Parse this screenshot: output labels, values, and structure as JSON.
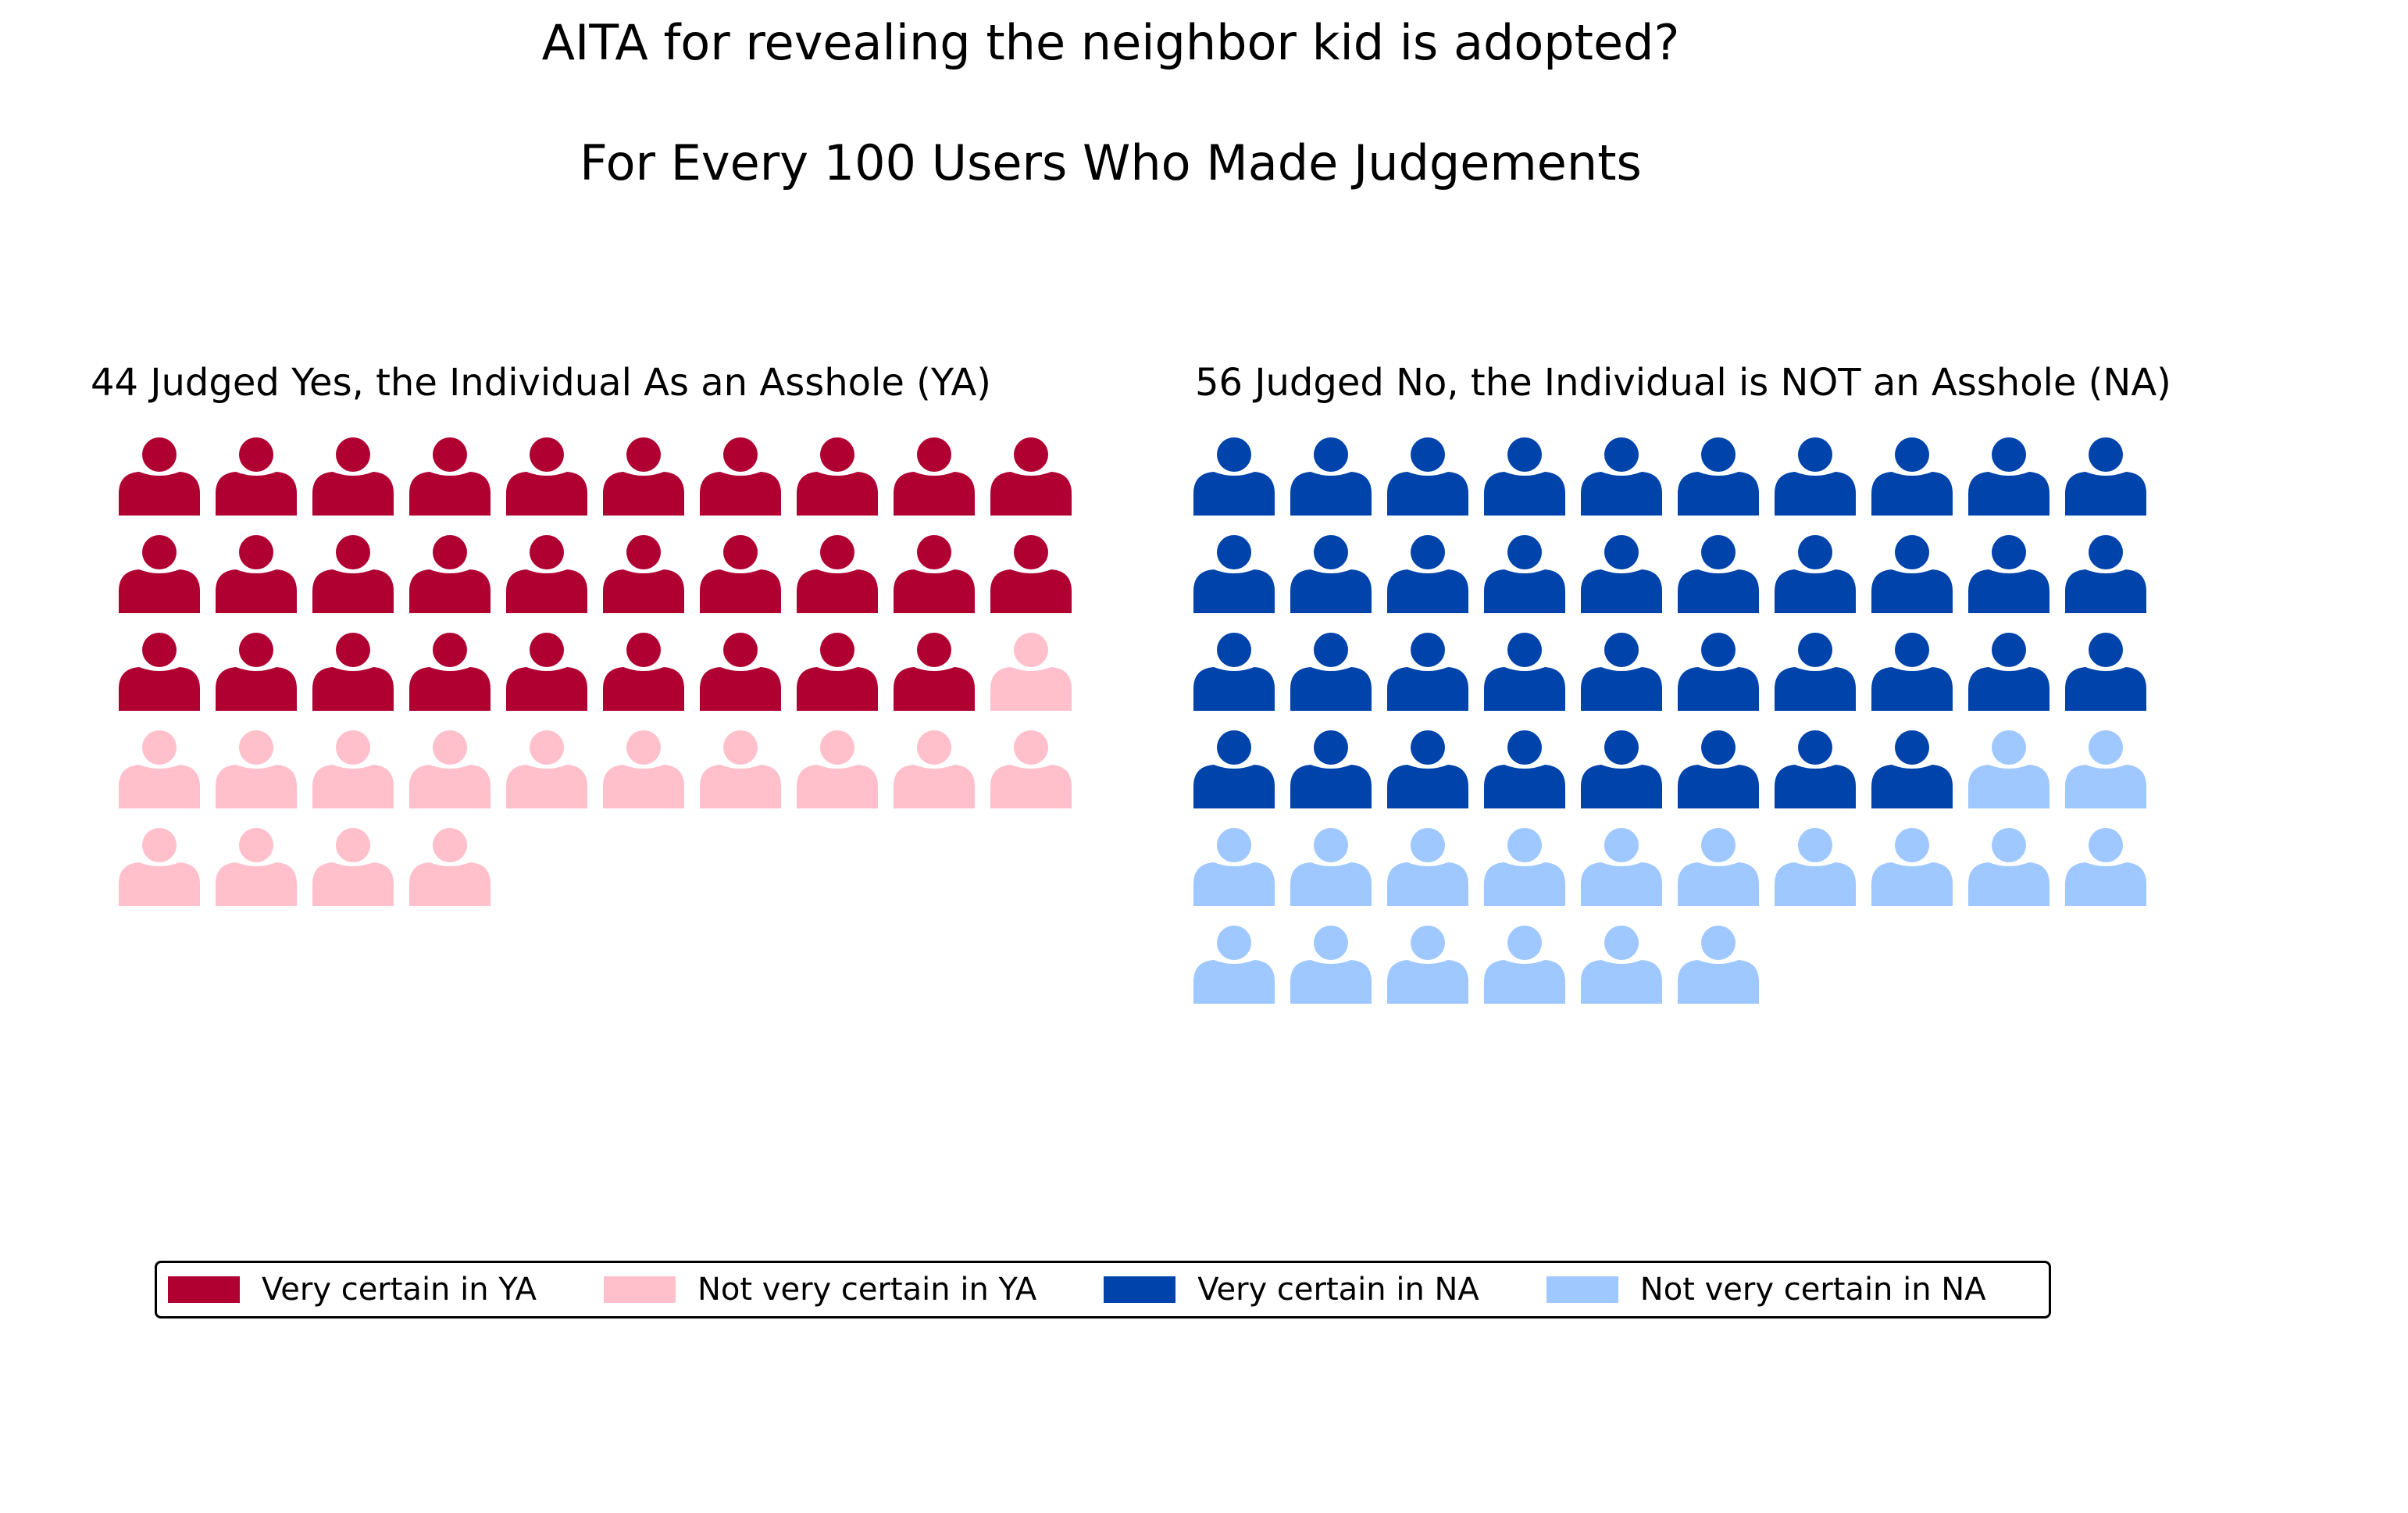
{
  "chart_data": {
    "type": "pictogram",
    "title": "AITA for revealing the neighbor kid is adopted?",
    "subtitle": "For Every 100 Users Who Made Judgements",
    "icon": "person-icon",
    "columns": 10,
    "panels": [
      {
        "id": "ya",
        "title": "44 Judged Yes, the Individual As an Asshole (YA)",
        "total": 44,
        "segments": [
          {
            "series": "Very certain in YA",
            "count": 29,
            "color": "#b00032"
          },
          {
            "series": "Not very certain in YA",
            "count": 15,
            "color": "#ffc0cb"
          }
        ]
      },
      {
        "id": "na",
        "title": "56 Judged No, the Individual is NOT an Asshole (NA)",
        "total": 56,
        "segments": [
          {
            "series": "Very certain in NA",
            "count": 38,
            "color": "#0043aa"
          },
          {
            "series": "Not very certain in NA",
            "count": 18,
            "color": "#9ec8ff"
          }
        ]
      }
    ],
    "legend": {
      "placement": "bottom-center",
      "items": [
        {
          "label": "Very certain in YA",
          "color": "#b00032"
        },
        {
          "label": "Not very certain in YA",
          "color": "#ffc0cb"
        },
        {
          "label": "Very certain in NA",
          "color": "#0043aa"
        },
        {
          "label": "Not very certain in NA",
          "color": "#9ec8ff"
        }
      ]
    }
  }
}
